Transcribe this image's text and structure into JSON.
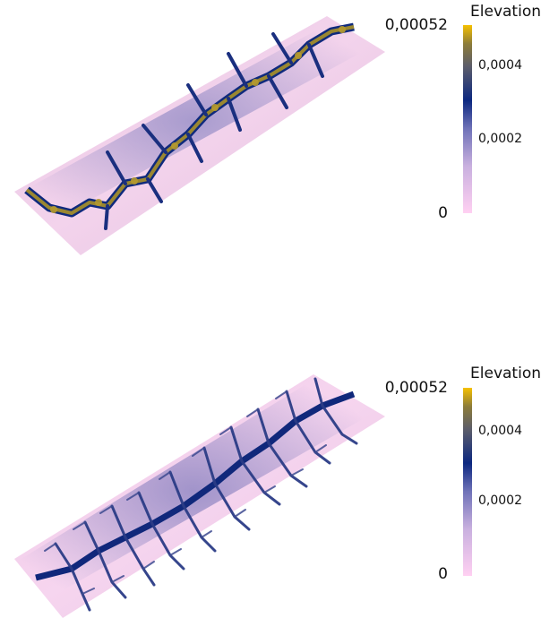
{
  "panels": [
    {
      "id": "top",
      "legend": {
        "title": "Elevation",
        "max_label": "0,00052",
        "min_label": "0",
        "tick_labels": [
          "0,0004",
          "0,0002"
        ],
        "ticks": [
          0.0004,
          0.0002
        ],
        "range": [
          0,
          0.00052
        ]
      },
      "terrain": {
        "relief": "moderate"
      }
    },
    {
      "id": "bottom",
      "legend": {
        "title": "Elevation",
        "max_label": "0,00052",
        "min_label": "0",
        "tick_labels": [
          "0,0004",
          "0,0002"
        ],
        "ticks": [
          0.0004,
          0.0002
        ],
        "range": [
          0,
          0.00052
        ]
      },
      "terrain": {
        "relief": "dense"
      }
    }
  ],
  "colormap": [
    "#ffd0f2",
    "#c9b0df",
    "#6f72b8",
    "#0c2880",
    "#5c5d6a",
    "#8c7c3a",
    "#f6c000"
  ]
}
